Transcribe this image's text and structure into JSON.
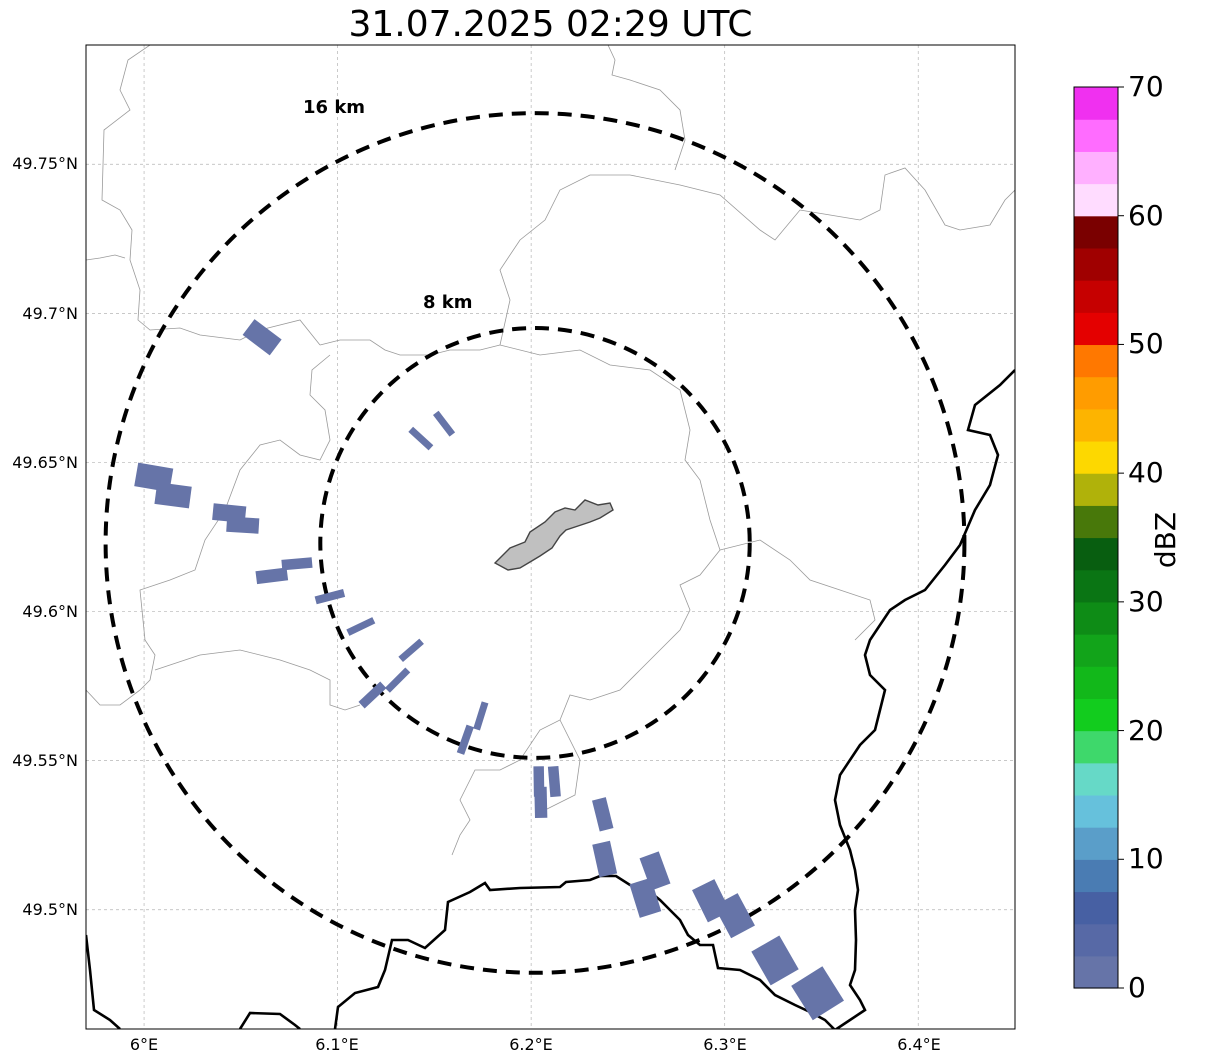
{
  "title": "31.07.2025 02:29 UTC",
  "map": {
    "lon_range": [
      5.97,
      6.45
    ],
    "lat_range": [
      49.46,
      49.79
    ],
    "lon_ticks": [
      {
        "value": 6.0,
        "label": "6°E"
      },
      {
        "value": 6.1,
        "label": "6.1°E"
      },
      {
        "value": 6.2,
        "label": "6.2°E"
      },
      {
        "value": 6.3,
        "label": "6.3°E"
      },
      {
        "value": 6.4,
        "label": "6.4°E"
      }
    ],
    "lat_ticks": [
      {
        "value": 49.75,
        "label": "49.75°N"
      },
      {
        "value": 49.7,
        "label": "49.7°N"
      },
      {
        "value": 49.65,
        "label": "49.65°N"
      },
      {
        "value": 49.6,
        "label": "49.6°N"
      },
      {
        "value": 49.55,
        "label": "49.55°N"
      },
      {
        "value": 49.5,
        "label": "49.5°N"
      }
    ],
    "gridlines": true,
    "radar_center": {
      "lon": 6.202,
      "lat": 49.623
    },
    "range_rings": [
      {
        "radius_km": 8,
        "label": "8 km"
      },
      {
        "radius_km": 16,
        "label": "16 km"
      }
    ],
    "city_fill": "#c0c0c0",
    "echo_color": "#6674a8",
    "echoes": [
      {
        "lon": 6.061,
        "lat": 49.692
      },
      {
        "lon": 6.143,
        "lat": 49.658
      },
      {
        "lon": 6.155,
        "lat": 49.663
      },
      {
        "lon": 6.005,
        "lat": 49.645
      },
      {
        "lon": 6.015,
        "lat": 49.639
      },
      {
        "lon": 6.044,
        "lat": 49.633
      },
      {
        "lon": 6.051,
        "lat": 49.629
      },
      {
        "lon": 6.066,
        "lat": 49.612
      },
      {
        "lon": 6.079,
        "lat": 49.616
      },
      {
        "lon": 6.096,
        "lat": 49.605
      },
      {
        "lon": 6.112,
        "lat": 49.595
      },
      {
        "lon": 6.138,
        "lat": 49.587
      },
      {
        "lon": 6.118,
        "lat": 49.572
      },
      {
        "lon": 6.131,
        "lat": 49.577
      },
      {
        "lon": 6.174,
        "lat": 49.565
      },
      {
        "lon": 6.166,
        "lat": 49.557
      },
      {
        "lon": 6.204,
        "lat": 49.543
      },
      {
        "lon": 6.212,
        "lat": 49.543
      },
      {
        "lon": 6.205,
        "lat": 49.536
      },
      {
        "lon": 6.237,
        "lat": 49.532
      },
      {
        "lon": 6.238,
        "lat": 49.517
      },
      {
        "lon": 6.264,
        "lat": 49.513
      },
      {
        "lon": 6.259,
        "lat": 49.504
      },
      {
        "lon": 6.293,
        "lat": 49.503
      },
      {
        "lon": 6.305,
        "lat": 49.498
      },
      {
        "lon": 6.326,
        "lat": 49.483
      },
      {
        "lon": 6.348,
        "lat": 49.472
      }
    ]
  },
  "colorbar": {
    "label": "dBZ",
    "min": 0,
    "max": 70,
    "ticks": [
      "0",
      "10",
      "20",
      "30",
      "40",
      "50",
      "60",
      "70"
    ],
    "colors": [
      "#6674a8",
      "#5769a6",
      "#4760a3",
      "#4a7cb3",
      "#5a9ec9",
      "#66c1dc",
      "#66d9c7",
      "#3ed86b",
      "#12cc1e",
      "#12b81a",
      "#12a41a",
      "#0e8c16",
      "#0a7514",
      "#085e10",
      "#48780a",
      "#b0b20a",
      "#fdd800",
      "#fdb400",
      "#ff9c00",
      "#ff7800",
      "#e40000",
      "#c60000",
      "#a00000",
      "#7a0000",
      "#ffdcff",
      "#ffb0ff",
      "#ff6cff",
      "#f030f0"
    ]
  }
}
